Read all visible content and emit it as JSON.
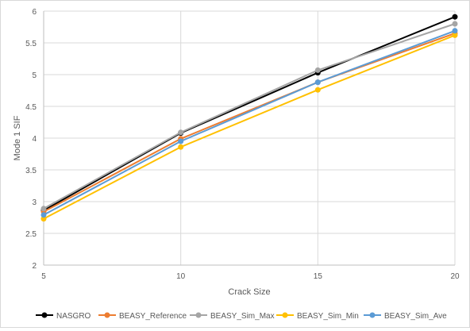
{
  "chart_data": {
    "type": "line",
    "title": "",
    "xlabel": "Crack Size",
    "ylabel": "Mode 1 SIF",
    "x": [
      5,
      10,
      15,
      20
    ],
    "xlim": [
      5,
      20
    ],
    "ylim": [
      2,
      6
    ],
    "x_ticks": [
      "5",
      "10",
      "15",
      "20"
    ],
    "y_ticks": [
      "2",
      "2.5",
      "3",
      "3.5",
      "4",
      "4.5",
      "5",
      "5.5",
      "6"
    ],
    "grid": true,
    "legend_position": "bottom",
    "series": [
      {
        "name": "NASGRO",
        "color": "#000000",
        "values": [
          2.86,
          4.08,
          5.03,
          5.91
        ]
      },
      {
        "name": "BEASY_Reference",
        "color": "#ed7d31",
        "values": [
          2.84,
          3.99,
          4.88,
          5.65
        ]
      },
      {
        "name": "BEASY_Sim_Max",
        "color": "#a5a5a5",
        "values": [
          2.89,
          4.09,
          5.07,
          5.8
        ]
      },
      {
        "name": "BEASY_Sim_Min",
        "color": "#ffc000",
        "values": [
          2.73,
          3.86,
          4.76,
          5.62
        ]
      },
      {
        "name": "BEASY_Sim_Ave",
        "color": "#5b9bd5",
        "values": [
          2.79,
          3.95,
          4.88,
          5.69
        ]
      }
    ]
  }
}
